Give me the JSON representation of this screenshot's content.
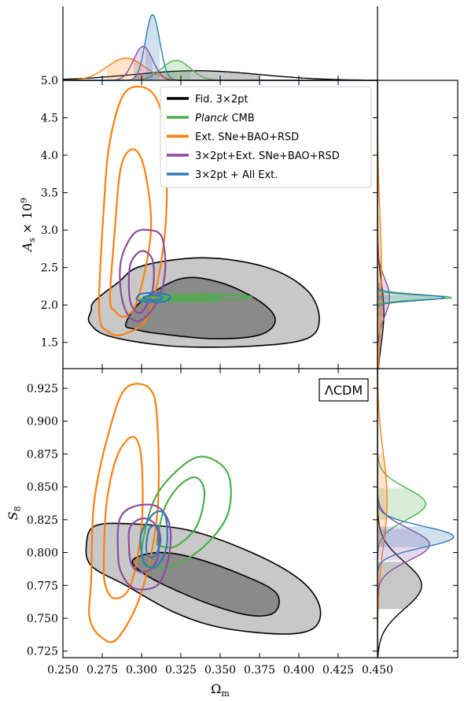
{
  "chart_data": {
    "type": "contour-triangle",
    "model_label": "ΛCDM",
    "legend": [
      {
        "key": "fid",
        "label": "Fid. 3×2pt",
        "color": "#000000"
      },
      {
        "key": "planck",
        "label": "Planck CMB",
        "label_italic": "Planck",
        "label_rest": " CMB",
        "color": "#4daf4a"
      },
      {
        "key": "ext",
        "label": "Ext. SNe+BAO+RSD",
        "color": "#ff7f0e"
      },
      {
        "key": "comb",
        "label": "3×2pt+Ext. SNe+BAO+RSD",
        "color": "#8c4b9e"
      },
      {
        "key": "all",
        "label": "3×2pt + All Ext.",
        "color": "#2f7bb6"
      }
    ],
    "axes": {
      "omega_m": {
        "label": "Ω_m",
        "range": [
          0.25,
          0.45
        ],
        "ticks": [
          "0.250",
          "0.275",
          "0.300",
          "0.325",
          "0.350",
          "0.375",
          "0.400",
          "0.425",
          "0.450"
        ]
      },
      "As": {
        "label": "A_s × 10^9",
        "range": [
          1.15,
          5.0
        ],
        "ticks": [
          "1.5",
          "2.0",
          "2.5",
          "3.0",
          "3.5",
          "4.0",
          "4.5",
          "5.0"
        ]
      },
      "S8": {
        "label": "S_8",
        "range": [
          0.72,
          0.94
        ],
        "ticks": [
          "0.725",
          "0.750",
          "0.775",
          "0.800",
          "0.825",
          "0.850",
          "0.875",
          "0.900",
          "0.925"
        ]
      }
    },
    "posteriors_1d": {
      "omega_m": [
        {
          "key": "fid",
          "mean": 0.335,
          "sigma": 0.04,
          "height": 0.13
        },
        {
          "key": "planck",
          "mean": 0.322,
          "sigma": 0.009,
          "height": 0.27
        },
        {
          "key": "ext",
          "mean": 0.29,
          "sigma": 0.012,
          "height": 0.3
        },
        {
          "key": "comb",
          "mean": 0.301,
          "sigma": 0.006,
          "height": 0.46
        },
        {
          "key": "all",
          "mean": 0.307,
          "sigma": 0.0045,
          "height": 0.89
        }
      ],
      "S8": [
        {
          "key": "fid",
          "mean": 0.775,
          "sigma": 0.018,
          "height": 0.55
        },
        {
          "key": "planck",
          "mean": 0.837,
          "sigma": 0.012,
          "height": 0.6
        },
        {
          "key": "ext",
          "mean": 0.84,
          "sigma": 0.035,
          "height": 0.12
        },
        {
          "key": "comb",
          "mean": 0.806,
          "sigma": 0.012,
          "height": 0.65
        },
        {
          "key": "all",
          "mean": 0.812,
          "sigma": 0.008,
          "height": 0.95
        }
      ],
      "As": [
        {
          "key": "fid",
          "mean": 1.9,
          "sigma": 0.4,
          "height": 0.08
        },
        {
          "key": "comb",
          "mean": 2.1,
          "sigma": 0.25,
          "height": 0.15
        },
        {
          "key": "ext",
          "mean": 2.4,
          "sigma": 0.8,
          "height": 0.05
        },
        {
          "key": "planck",
          "mean": 2.1,
          "sigma": 0.03,
          "height": 0.95
        },
        {
          "key": "all",
          "mean": 2.1,
          "sigma": 0.04,
          "height": 0.85
        }
      ]
    },
    "contours_As": [
      {
        "key": "fid",
        "level": "95",
        "points": [
          [
            0.268,
            1.93
          ],
          [
            0.27,
            2.05
          ],
          [
            0.285,
            2.3
          ],
          [
            0.3,
            2.52
          ],
          [
            0.34,
            2.63
          ],
          [
            0.38,
            2.5
          ],
          [
            0.405,
            2.2
          ],
          [
            0.413,
            1.82
          ],
          [
            0.405,
            1.55
          ],
          [
            0.37,
            1.45
          ],
          [
            0.32,
            1.45
          ],
          [
            0.28,
            1.58
          ],
          [
            0.267,
            1.76
          ]
        ]
      },
      {
        "key": "fid",
        "level": "68",
        "points": [
          [
            0.29,
            1.75
          ],
          [
            0.3,
            2.05
          ],
          [
            0.325,
            2.35
          ],
          [
            0.35,
            2.3
          ],
          [
            0.375,
            2.05
          ],
          [
            0.385,
            1.8
          ],
          [
            0.375,
            1.6
          ],
          [
            0.345,
            1.55
          ],
          [
            0.31,
            1.62
          ],
          [
            0.295,
            1.68
          ]
        ]
      },
      {
        "key": "ext",
        "level": "95",
        "points": [
          [
            0.273,
            1.93
          ],
          [
            0.276,
            3.3
          ],
          [
            0.28,
            4.2
          ],
          [
            0.29,
            4.85
          ],
          [
            0.307,
            4.83
          ],
          [
            0.315,
            4.25
          ],
          [
            0.315,
            3.0
          ],
          [
            0.305,
            1.9
          ],
          [
            0.29,
            1.62
          ],
          [
            0.279,
            1.64
          ]
        ]
      },
      {
        "key": "ext",
        "level": "68",
        "points": [
          [
            0.28,
            2.1
          ],
          [
            0.283,
            3.0
          ],
          [
            0.287,
            3.85
          ],
          [
            0.295,
            4.08
          ],
          [
            0.302,
            3.8
          ],
          [
            0.306,
            3.0
          ],
          [
            0.298,
            2.1
          ],
          [
            0.29,
            1.85
          ],
          [
            0.283,
            1.92
          ]
        ]
      },
      {
        "key": "comb",
        "level": "95",
        "points": [
          [
            0.287,
            2.15
          ],
          [
            0.287,
            2.6
          ],
          [
            0.295,
            2.95
          ],
          [
            0.305,
            3.0
          ],
          [
            0.313,
            2.9
          ],
          [
            0.315,
            2.45
          ],
          [
            0.31,
            2.05
          ],
          [
            0.3,
            1.8
          ],
          [
            0.292,
            1.85
          ]
        ]
      },
      {
        "key": "comb",
        "level": "68",
        "points": [
          [
            0.292,
            2.2
          ],
          [
            0.293,
            2.55
          ],
          [
            0.3,
            2.72
          ],
          [
            0.307,
            2.6
          ],
          [
            0.307,
            2.2
          ],
          [
            0.3,
            1.9
          ],
          [
            0.294,
            1.98
          ]
        ]
      },
      {
        "key": "planck",
        "level": "95",
        "points": [
          [
            0.3,
            2.08
          ],
          [
            0.32,
            2.14
          ],
          [
            0.35,
            2.14
          ],
          [
            0.37,
            2.11
          ],
          [
            0.35,
            2.06
          ],
          [
            0.32,
            2.05
          ],
          [
            0.305,
            2.06
          ]
        ]
      },
      {
        "key": "planck",
        "level": "68",
        "points": [
          [
            0.31,
            2.09
          ],
          [
            0.33,
            2.11
          ],
          [
            0.35,
            2.11
          ],
          [
            0.34,
            2.08
          ],
          [
            0.32,
            2.08
          ]
        ]
      },
      {
        "key": "all",
        "level": "95",
        "points": [
          [
            0.297,
            2.1
          ],
          [
            0.3,
            2.15
          ],
          [
            0.31,
            2.16
          ],
          [
            0.318,
            2.12
          ],
          [
            0.315,
            2.05
          ],
          [
            0.305,
            2.04
          ],
          [
            0.298,
            2.06
          ]
        ]
      },
      {
        "key": "all",
        "level": "68",
        "points": [
          [
            0.301,
            2.1
          ],
          [
            0.307,
            2.13
          ],
          [
            0.313,
            2.11
          ],
          [
            0.311,
            2.07
          ],
          [
            0.304,
            2.07
          ]
        ]
      }
    ],
    "contours_S8": [
      {
        "key": "fid",
        "level": "95",
        "points": [
          [
            0.265,
            0.807
          ],
          [
            0.27,
            0.82
          ],
          [
            0.29,
            0.822
          ],
          [
            0.33,
            0.817
          ],
          [
            0.37,
            0.8
          ],
          [
            0.4,
            0.78
          ],
          [
            0.413,
            0.76
          ],
          [
            0.41,
            0.743
          ],
          [
            0.39,
            0.738
          ],
          [
            0.35,
            0.743
          ],
          [
            0.32,
            0.755
          ],
          [
            0.29,
            0.775
          ],
          [
            0.268,
            0.79
          ]
        ]
      },
      {
        "key": "fid",
        "level": "68",
        "points": [
          [
            0.295,
            0.795
          ],
          [
            0.31,
            0.8
          ],
          [
            0.33,
            0.797
          ],
          [
            0.36,
            0.785
          ],
          [
            0.385,
            0.77
          ],
          [
            0.385,
            0.755
          ],
          [
            0.37,
            0.752
          ],
          [
            0.345,
            0.76
          ],
          [
            0.315,
            0.775
          ],
          [
            0.298,
            0.787
          ]
        ]
      },
      {
        "key": "ext",
        "level": "95",
        "points": [
          [
            0.268,
            0.78
          ],
          [
            0.27,
            0.84
          ],
          [
            0.28,
            0.895
          ],
          [
            0.29,
            0.925
          ],
          [
            0.305,
            0.925
          ],
          [
            0.31,
            0.9
          ],
          [
            0.31,
            0.83
          ],
          [
            0.3,
            0.77
          ],
          [
            0.285,
            0.735
          ],
          [
            0.275,
            0.735
          ],
          [
            0.267,
            0.75
          ]
        ]
      },
      {
        "key": "ext",
        "level": "68",
        "points": [
          [
            0.276,
            0.795
          ],
          [
            0.278,
            0.84
          ],
          [
            0.285,
            0.875
          ],
          [
            0.295,
            0.888
          ],
          [
            0.3,
            0.87
          ],
          [
            0.3,
            0.82
          ],
          [
            0.293,
            0.775
          ],
          [
            0.283,
            0.765
          ],
          [
            0.277,
            0.775
          ]
        ]
      },
      {
        "key": "planck",
        "level": "95",
        "points": [
          [
            0.3,
            0.8
          ],
          [
            0.308,
            0.84
          ],
          [
            0.325,
            0.865
          ],
          [
            0.34,
            0.873
          ],
          [
            0.355,
            0.86
          ],
          [
            0.355,
            0.83
          ],
          [
            0.34,
            0.805
          ],
          [
            0.32,
            0.79
          ],
          [
            0.305,
            0.79
          ]
        ]
      },
      {
        "key": "planck",
        "level": "68",
        "points": [
          [
            0.31,
            0.81
          ],
          [
            0.315,
            0.835
          ],
          [
            0.325,
            0.852
          ],
          [
            0.335,
            0.857
          ],
          [
            0.34,
            0.845
          ],
          [
            0.335,
            0.82
          ],
          [
            0.322,
            0.805
          ],
          [
            0.312,
            0.805
          ]
        ]
      },
      {
        "key": "comb",
        "level": "95",
        "points": [
          [
            0.285,
            0.8
          ],
          [
            0.286,
            0.825
          ],
          [
            0.295,
            0.835
          ],
          [
            0.31,
            0.835
          ],
          [
            0.318,
            0.82
          ],
          [
            0.317,
            0.795
          ],
          [
            0.31,
            0.775
          ],
          [
            0.295,
            0.773
          ],
          [
            0.287,
            0.785
          ]
        ]
      },
      {
        "key": "comb",
        "level": "68",
        "points": [
          [
            0.292,
            0.805
          ],
          [
            0.293,
            0.82
          ],
          [
            0.302,
            0.826
          ],
          [
            0.31,
            0.818
          ],
          [
            0.31,
            0.795
          ],
          [
            0.302,
            0.785
          ],
          [
            0.294,
            0.79
          ]
        ]
      },
      {
        "key": "all",
        "level": "95",
        "points": [
          [
            0.3,
            0.8
          ],
          [
            0.3,
            0.815
          ],
          [
            0.308,
            0.83
          ],
          [
            0.315,
            0.828
          ],
          [
            0.316,
            0.805
          ],
          [
            0.31,
            0.79
          ],
          [
            0.303,
            0.79
          ]
        ]
      },
      {
        "key": "all",
        "level": "68",
        "points": [
          [
            0.303,
            0.805
          ],
          [
            0.305,
            0.818
          ],
          [
            0.31,
            0.82
          ],
          [
            0.312,
            0.808
          ],
          [
            0.308,
            0.797
          ],
          [
            0.304,
            0.798
          ]
        ]
      }
    ]
  }
}
